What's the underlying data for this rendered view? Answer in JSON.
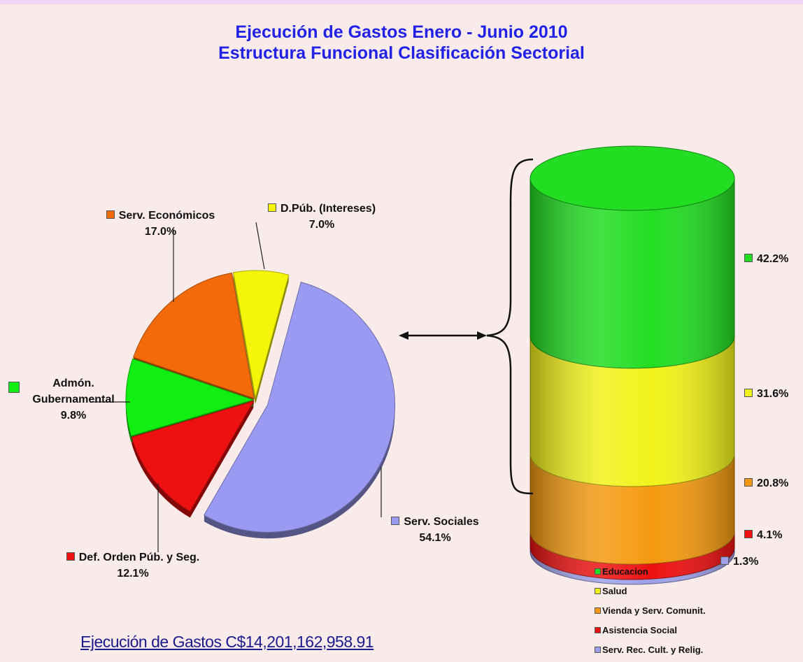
{
  "title": [
    "Ejecución de Gastos Enero - Junio 2010",
    "Estructura Funcional Clasificación Sectorial"
  ],
  "footer": "Ejecución de Gastos C$14,201,162,958.91",
  "chart_data": [
    {
      "type": "pie",
      "categories": [
        "D.Púb. (Intereses)",
        "Serv. Sociales",
        "Def. Orden Púb. y Seg.",
        "Admón. Gubernamental",
        "Serv. Económicos"
      ],
      "values": [
        7.0,
        54.1,
        12.1,
        9.8,
        17.0
      ],
      "value_labels": [
        "7.0%",
        "54.1%",
        "12.1%",
        "9.8%",
        "17.0%"
      ],
      "colors": [
        "#f5f50a",
        "#9a9af2",
        "#ee1111",
        "#11ee11",
        "#f26a0a"
      ]
    },
    {
      "type": "bar",
      "stacked": true,
      "series": [
        {
          "name": "Educacion",
          "color": "#22dd22",
          "values": [
            42.2
          ],
          "value_labels": [
            "42.2%"
          ]
        },
        {
          "name": "Salud",
          "color": "#f2f21a",
          "values": [
            31.6
          ],
          "value_labels": [
            "31.6%"
          ]
        },
        {
          "name": "Vienda y Serv. Comunit.",
          "color": "#f59a10",
          "values": [
            20.8
          ],
          "value_labels": [
            "20.8%"
          ]
        },
        {
          "name": "Asistencia Social",
          "color": "#ee1111",
          "values": [
            4.1
          ],
          "value_labels": [
            "4.1%"
          ]
        },
        {
          "name": "Serv. Rec. Cult. y Relig.",
          "color": "#9da0e8",
          "values": [
            1.3
          ],
          "value_labels": [
            "1.3%"
          ]
        }
      ]
    }
  ]
}
